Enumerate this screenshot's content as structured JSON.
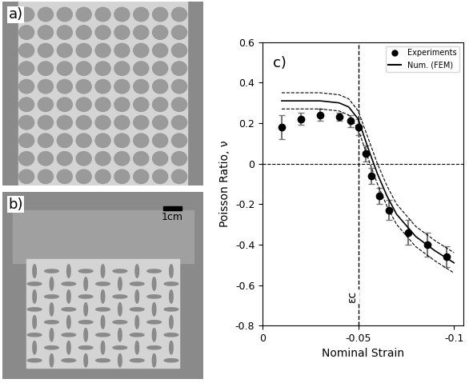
{
  "panels": [
    {
      "label": "a)"
    },
    {
      "label": "b)",
      "scale_bar": "1cm"
    }
  ],
  "chart_data": {
    "type": "line",
    "panel_label": "c)",
    "x_label": "Nominal Strain",
    "y_label": "Poisson Ratio, ν",
    "xlim": [
      0,
      -0.105
    ],
    "ylim": [
      -0.8,
      0.6
    ],
    "xticks": [
      0,
      -0.05,
      -0.1
    ],
    "yticks": [
      -0.8,
      -0.6,
      -0.4,
      -0.2,
      0,
      0.2,
      0.4,
      0.6
    ],
    "legend": "upper right",
    "vlines": [
      -0.05
    ],
    "hlines": [
      0
    ],
    "annotations": [
      {
        "text": "εc",
        "x": -0.05
      }
    ],
    "series": [
      {
        "name": "Experiments",
        "type": "scatter",
        "color": "#000000",
        "marker": "circle",
        "x": [
          -0.01,
          -0.02,
          -0.03,
          -0.04,
          -0.046,
          -0.05,
          -0.054,
          -0.057,
          -0.061,
          -0.066,
          -0.076,
          -0.086,
          -0.096
        ],
        "values": [
          0.18,
          0.22,
          0.24,
          0.23,
          0.21,
          0.18,
          0.05,
          -0.06,
          -0.16,
          -0.23,
          -0.34,
          -0.4,
          -0.46
        ],
        "errors": [
          0.06,
          0.03,
          0.03,
          0.02,
          0.03,
          0.04,
          0.04,
          0.04,
          0.04,
          0.05,
          0.06,
          0.06,
          0.05
        ]
      },
      {
        "name": "Num. (FEM)",
        "type": "line",
        "color": "#000000",
        "line_style": "solid",
        "x": [
          -0.01,
          -0.02,
          -0.03,
          -0.04,
          -0.045,
          -0.05,
          -0.055,
          -0.06,
          -0.065,
          -0.07,
          -0.08,
          -0.09,
          -0.1
        ],
        "values": [
          0.31,
          0.31,
          0.31,
          0.3,
          0.28,
          0.22,
          0.08,
          -0.05,
          -0.16,
          -0.25,
          -0.36,
          -0.43,
          -0.49
        ],
        "upper": [
          0.35,
          0.35,
          0.35,
          0.34,
          0.32,
          0.26,
          0.13,
          0.0,
          -0.11,
          -0.2,
          -0.31,
          -0.38,
          -0.44
        ],
        "lower": [
          0.27,
          0.27,
          0.27,
          0.26,
          0.24,
          0.17,
          0.03,
          -0.1,
          -0.21,
          -0.3,
          -0.41,
          -0.48,
          -0.54
        ]
      }
    ]
  }
}
